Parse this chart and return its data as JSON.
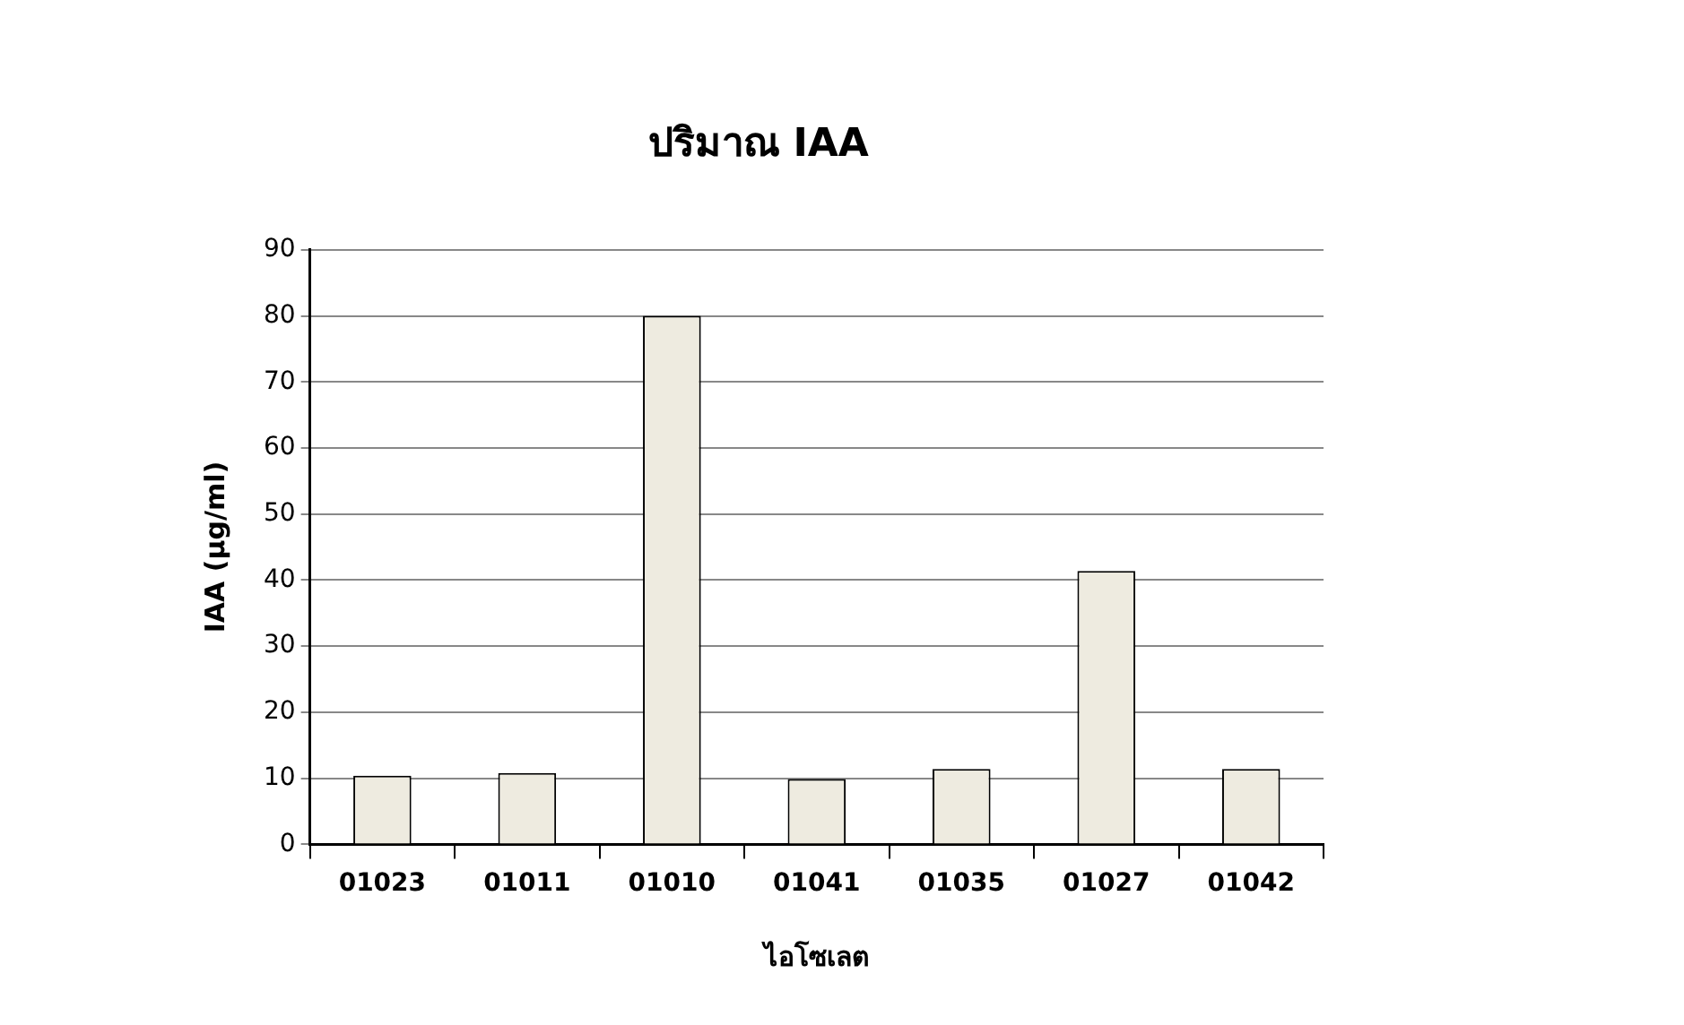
{
  "chart_data": {
    "type": "bar",
    "title": "ปริมาณ IAA",
    "xlabel": "ไอโซเลต",
    "ylabel": "IAA (µg/ml)",
    "categories": [
      "01023",
      "01011",
      "01010",
      "01041",
      "01035",
      "01027",
      "01042"
    ],
    "values": [
      10.4,
      10.8,
      80,
      9.9,
      11.4,
      41.4,
      11.4
    ],
    "color": "#eeebe0",
    "ylim": [
      0,
      90
    ],
    "yticks": [
      0,
      10,
      20,
      30,
      40,
      50,
      60,
      70,
      80,
      90
    ],
    "grid": "y",
    "legend": false
  }
}
